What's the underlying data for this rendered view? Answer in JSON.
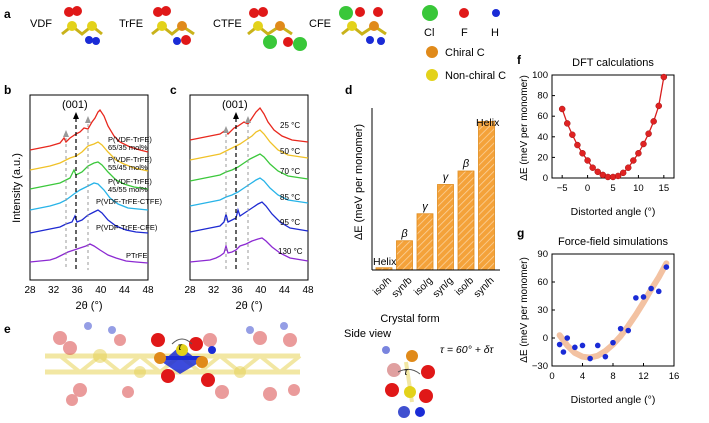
{
  "panel_letters": [
    "a",
    "b",
    "c",
    "d",
    "e",
    "f",
    "g"
  ],
  "panel_a": {
    "monomers": [
      "VDF",
      "TrFE",
      "CTFE",
      "CFE"
    ],
    "legend": [
      {
        "symbol": "Cl",
        "label": "Cl",
        "color": "#39c739"
      },
      {
        "symbol": "F",
        "label": "F",
        "color": "#e01818"
      },
      {
        "symbol": "H",
        "label": "H",
        "color": "#1a2bd6"
      },
      {
        "symbol": "Chiral C",
        "label": "Chiral C",
        "color": "#e08a1a"
      },
      {
        "symbol": "Non-chiral C",
        "label": "Non-chiral C",
        "color": "#e3d21a"
      }
    ]
  },
  "panel_b": {
    "ylabel": "Intensity (a.u.)",
    "xlabel": "2θ (°)",
    "xticks": [
      "28",
      "32",
      "36",
      "40",
      "44",
      "48"
    ],
    "peak_label": "(001)",
    "traces": [
      {
        "label1": "P(VDF-TrFE)",
        "label2": "65/35 mol%",
        "color": "#e8281e"
      },
      {
        "label1": "P(VDF-TrFE)",
        "label2": "55/45 mol%",
        "color": "#f0c228"
      },
      {
        "label1": "P(VDF-TrFE)",
        "label2": "45/55 mol%",
        "color": "#3cc83c"
      },
      {
        "label1": "P(VDF-TrFE-CTFE)",
        "label2": "",
        "color": "#28b4e8"
      },
      {
        "label1": "P(VDF-TrFE-CFE)",
        "label2": "",
        "color": "#1e2ad2"
      },
      {
        "label1": "PTrFE",
        "label2": "",
        "color": "#8c2ad2"
      }
    ]
  },
  "panel_c": {
    "xlabel": "2θ (°)",
    "xticks": [
      "28",
      "32",
      "36",
      "40",
      "44",
      "48"
    ],
    "peak_label": "(001)",
    "temperatures": [
      "25 °C",
      "50 °C",
      "70 °C",
      "85 °C",
      "95 °C",
      "130 °C"
    ]
  },
  "panel_d": {
    "ylabel": "ΔE (meV per monomer)",
    "xlabel": "Crystal form",
    "label_helix_left": "Helix",
    "label_helix_right": "Helix",
    "chart_data": {
      "type": "bar",
      "categories": [
        "iso/h",
        "syn/b",
        "iso/g",
        "syn/g",
        "iso/b",
        "syn/h"
      ],
      "values": [
        1,
        13,
        25,
        38,
        44,
        66
      ],
      "bar_labels": [
        "",
        "β",
        "γ",
        "γ",
        "β",
        ""
      ],
      "ylim": [
        0,
        72
      ]
    }
  },
  "panel_e": {
    "side_view": "Side view",
    "tau_symbol": "τ",
    "tau_formula": "τ = 60° + δτ"
  },
  "panel_f": {
    "title": "DFT calculations",
    "ylabel": "ΔE (meV per monomer)",
    "xlabel": "Distorted angle (°)",
    "chart_data": {
      "type": "line",
      "x": [
        -5,
        -4,
        -3,
        -2,
        -1,
        0,
        1,
        2,
        3,
        4,
        5,
        6,
        7,
        8,
        9,
        10,
        11,
        12,
        13,
        14,
        15
      ],
      "y": [
        67,
        53,
        42,
        32,
        24,
        17,
        10,
        6,
        3,
        1,
        1,
        2,
        5,
        10,
        17,
        24,
        33,
        43,
        55,
        70,
        98
      ],
      "xlim": [
        -7,
        17
      ],
      "ylim": [
        0,
        100
      ],
      "xticks": [
        -5,
        0,
        5,
        10,
        15
      ],
      "yticks": [
        0,
        20,
        40,
        60,
        80,
        100
      ]
    }
  },
  "panel_g": {
    "title": "Force-field simulations",
    "ylabel": "ΔE (meV per monomer)",
    "xlabel": "Distorted angle (°)",
    "chart_data": {
      "type": "scatter",
      "x": [
        1,
        1.5,
        2,
        3,
        4,
        5,
        6,
        7,
        8,
        9,
        10,
        11,
        12,
        13,
        14,
        15
      ],
      "y": [
        -7,
        -15,
        0,
        -10,
        -8,
        -22,
        -8,
        -20,
        -5,
        10,
        8,
        43,
        44,
        53,
        50,
        76
      ],
      "fit_x": [
        1,
        2,
        3,
        4,
        5,
        6,
        7,
        8,
        9,
        10,
        11,
        12,
        13,
        14,
        15
      ],
      "fit_y": [
        3,
        -8,
        -16,
        -20,
        -21,
        -19,
        -14,
        -7,
        2,
        13,
        25,
        38,
        52,
        65,
        80
      ],
      "xlim": [
        0,
        16
      ],
      "ylim": [
        -30,
        90
      ],
      "xticks": [
        0,
        4,
        8,
        12,
        16
      ],
      "yticks": [
        -30,
        0,
        30,
        60,
        90
      ]
    }
  },
  "colors": {
    "bar_orange": "#f4a23a",
    "curve_red": "#d81c1c",
    "dot_blue": "#1a2bd6",
    "fit_band": "#f3c2a2"
  }
}
